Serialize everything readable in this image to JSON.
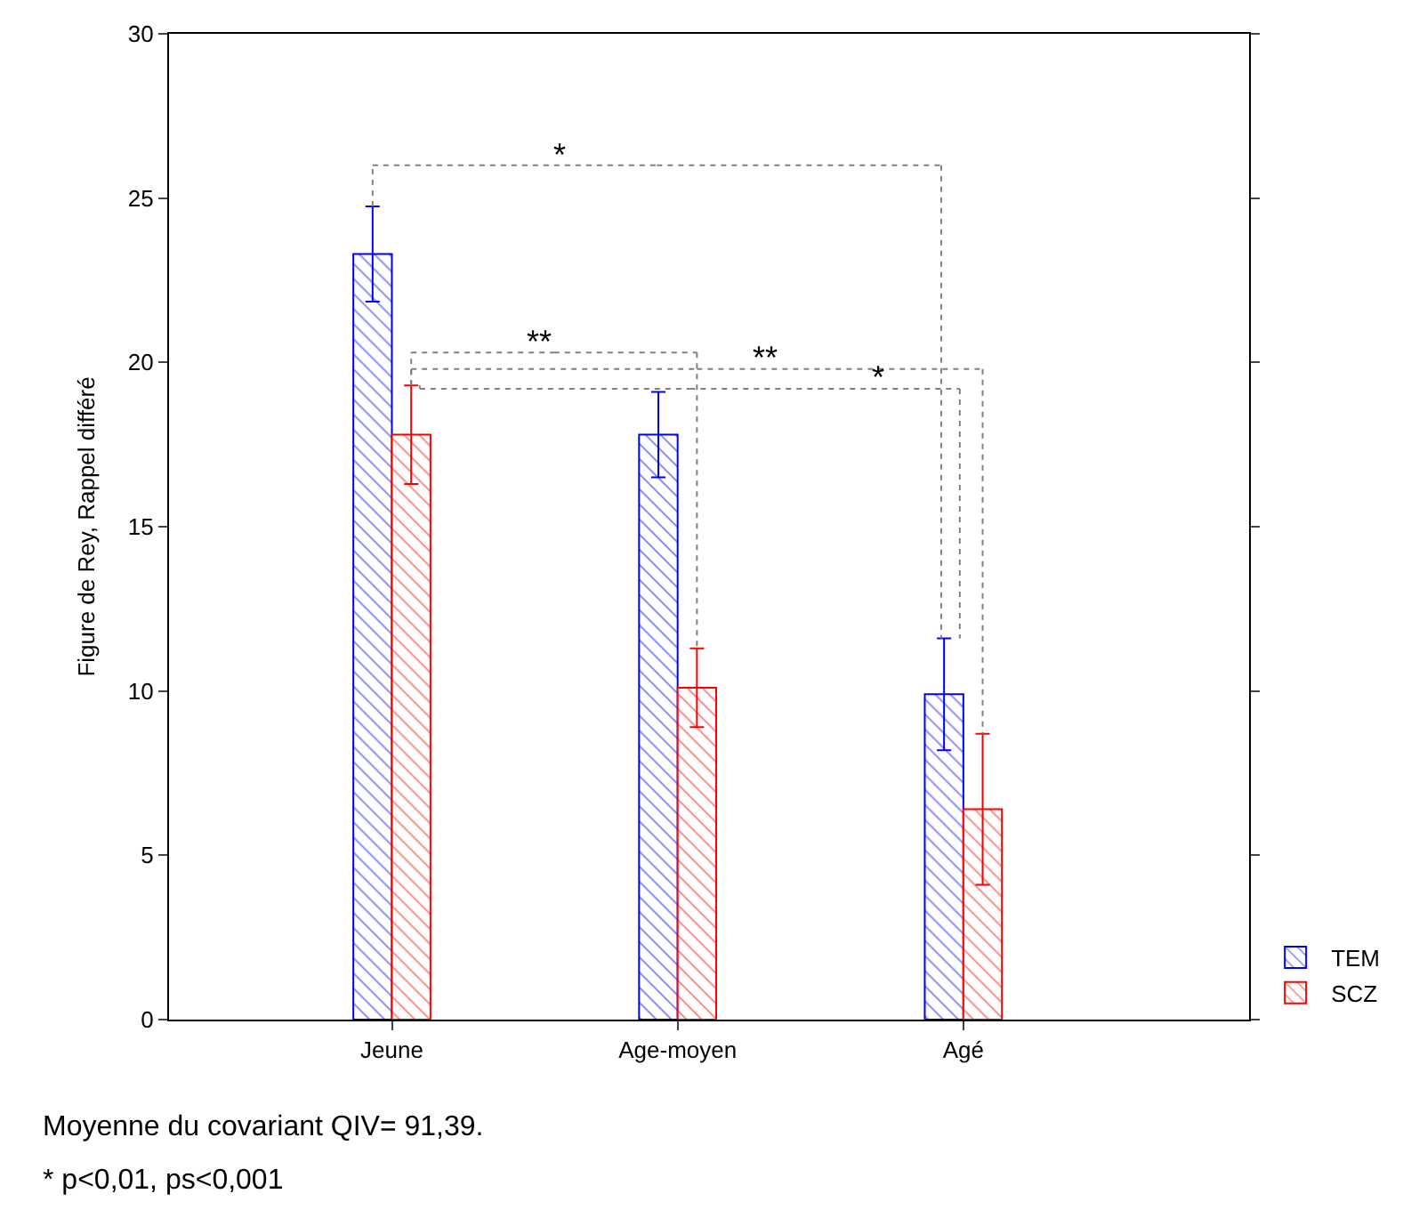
{
  "chart_data": {
    "type": "bar",
    "ylabel": "Figure de Rey, Rappel différé",
    "categories": [
      "Jeune",
      "Age-moyen",
      "Agé"
    ],
    "series": [
      {
        "name": "TEM",
        "color": "#0000ff",
        "values": [
          23.3,
          17.8,
          9.9
        ],
        "errors": [
          1.45,
          1.3,
          1.7
        ]
      },
      {
        "name": "SCZ",
        "color": "#ff0000",
        "values": [
          17.8,
          10.1,
          6.4
        ],
        "errors": [
          1.5,
          1.2,
          2.3
        ]
      }
    ],
    "ylim": [
      0,
      30
    ],
    "yticks": [
      0,
      5,
      10,
      15,
      20,
      25,
      30
    ],
    "legend": "bottom right",
    "annotations": [
      "*",
      "**",
      "**",
      "*",
      "Moyenne du covariant QIV= 91,39.",
      "* p<0,01, ps<0,001"
    ]
  }
}
